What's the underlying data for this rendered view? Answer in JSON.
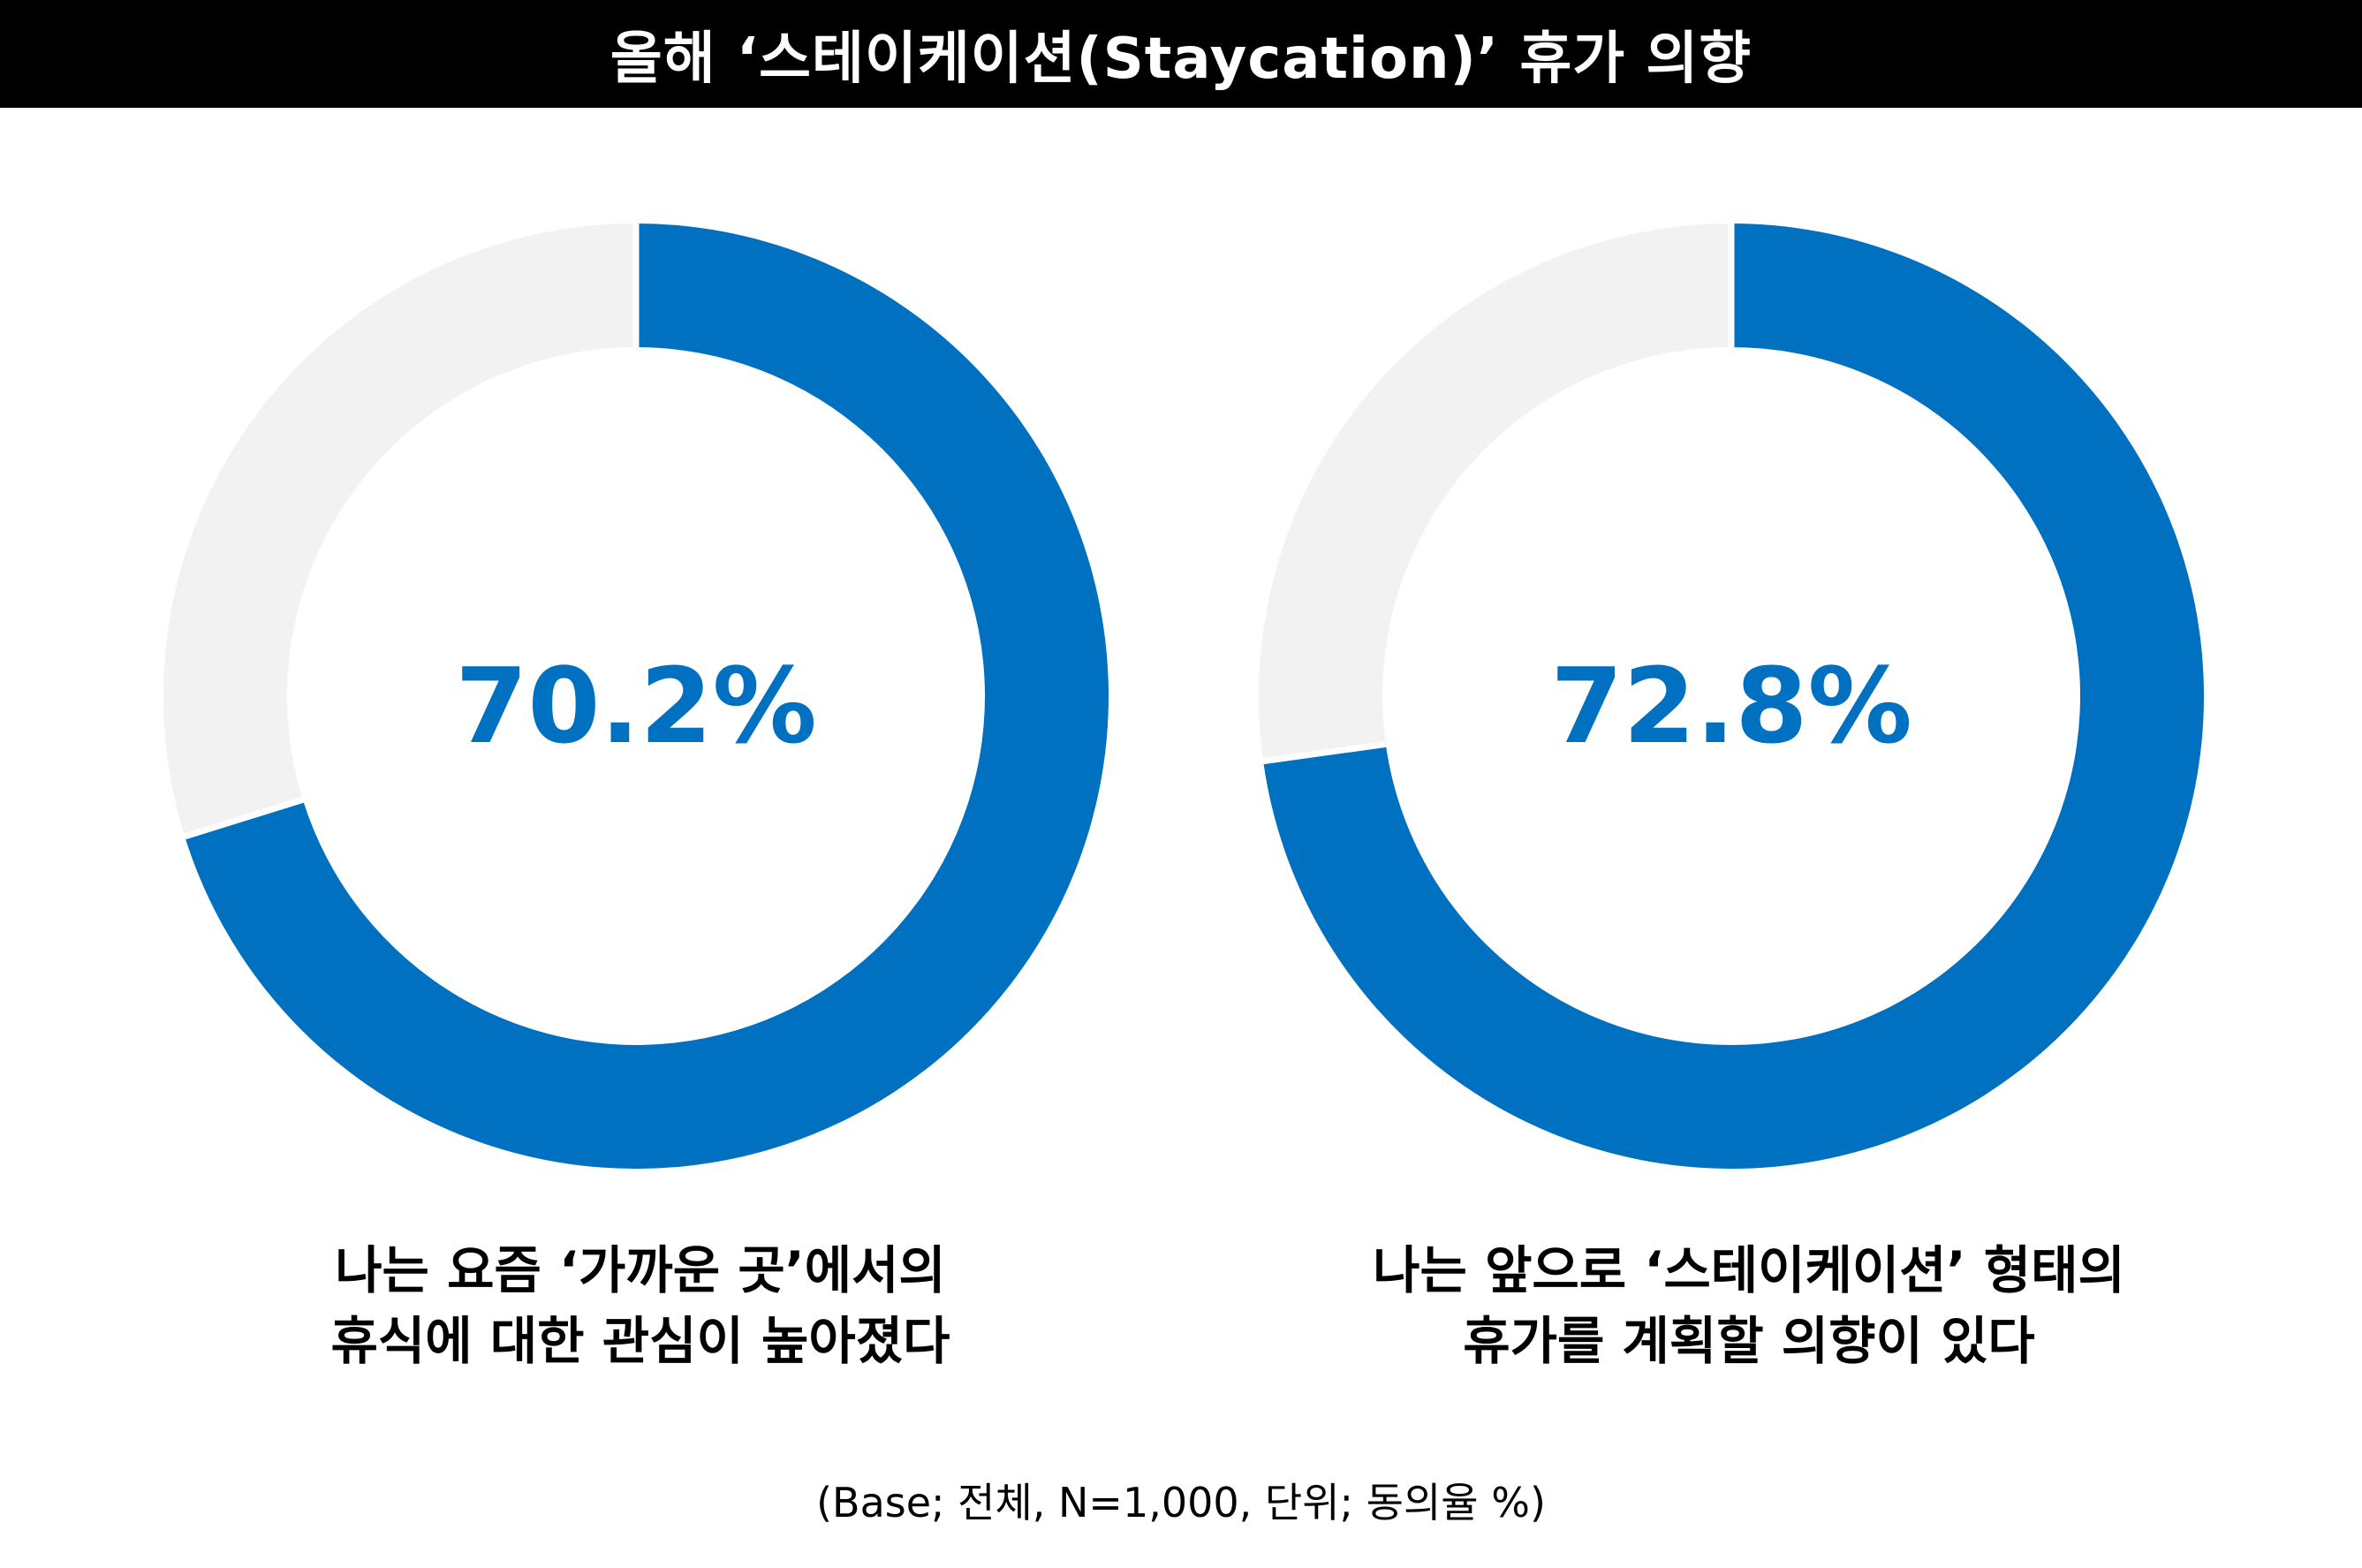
{
  "title": "올해 ‘스테이케이션(Staycation)’ 휴가 의향",
  "chart_data": [
    {
      "type": "pie",
      "variant": "donut",
      "value_label": "70.2%",
      "values": [
        70.2,
        29.8
      ],
      "colors": [
        "#0070c0",
        "#f2f2f2"
      ],
      "caption_lines": [
        "나는 요즘 ‘가까운 곳’에서의",
        "휴식에 대한 관심이 높아졌다"
      ]
    },
    {
      "type": "pie",
      "variant": "donut",
      "value_label": "72.8%",
      "values": [
        72.8,
        27.2
      ],
      "colors": [
        "#0070c0",
        "#f2f2f2"
      ],
      "caption_lines": [
        "나는 앞으로 ‘스테이케이션’ 형태의",
        "휴가를 계획할 의향이 있다"
      ]
    }
  ],
  "footnote": "(Base; 전체, N=1,000, 단위; 동의율 %)"
}
